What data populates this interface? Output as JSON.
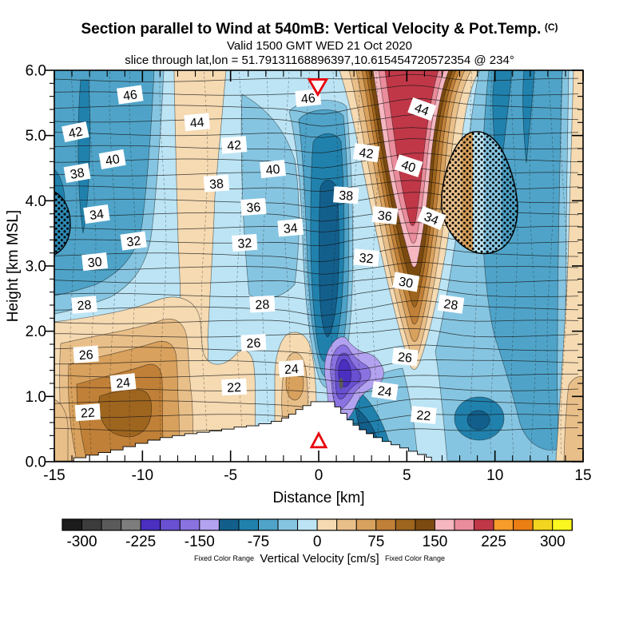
{
  "header": {
    "title": "Section parallel to Wind at 540mB: Vertical Velocity & Pot.Temp.",
    "title_suffix": "(C)",
    "subtitle1": "Valid 1500 GMT WED 21 Oct 2020",
    "subtitle2": "slice through lat,lon = 51.79131168896397,10.615454720572354 @ 234°"
  },
  "chart_data": {
    "type": "heatmap",
    "subtype": "filled-contour-vertical-cross-section",
    "xlabel": "Distance [km]",
    "ylabel": "Height [km MSL]",
    "xlim": [
      -15,
      15
    ],
    "ylim": [
      0,
      6
    ],
    "contour_units": "C",
    "contour_label_interval": 2,
    "x_ticks": [
      {
        "label": "-15",
        "v": -15
      },
      {
        "label": "-10",
        "v": -10
      },
      {
        "label": "-5",
        "v": -5
      },
      {
        "label": "0",
        "v": 0
      },
      {
        "label": "5",
        "v": 5
      },
      {
        "label": "10",
        "v": 10
      },
      {
        "label": "15",
        "v": 15
      }
    ],
    "y_ticks": [
      {
        "label": "0.0",
        "v": 0
      },
      {
        "label": "1.0",
        "v": 1
      },
      {
        "label": "2.0",
        "v": 2
      },
      {
        "label": "3.0",
        "v": 3
      },
      {
        "label": "4.0",
        "v": 4
      },
      {
        "label": "5.0",
        "v": 5
      },
      {
        "label": "6.0",
        "v": 6
      }
    ],
    "contour_labels": [
      {
        "v": "46",
        "x": -10.7,
        "y": 5.62,
        "r": -8
      },
      {
        "v": "46",
        "x": -0.6,
        "y": 5.57,
        "r": -6
      },
      {
        "v": "44",
        "x": -6.9,
        "y": 5.2,
        "r": -5
      },
      {
        "v": "44",
        "x": 5.85,
        "y": 5.4,
        "r": 20
      },
      {
        "v": "42",
        "x": -13.8,
        "y": 5.05,
        "r": -12
      },
      {
        "v": "42",
        "x": -4.8,
        "y": 4.85,
        "r": -5
      },
      {
        "v": "42",
        "x": 2.7,
        "y": 4.73,
        "r": 8
      },
      {
        "v": "40",
        "x": -11.7,
        "y": 4.63,
        "r": -10
      },
      {
        "v": "40",
        "x": -2.6,
        "y": 4.48,
        "r": -6
      },
      {
        "v": "40",
        "x": 5.1,
        "y": 4.53,
        "r": 18
      },
      {
        "v": "38",
        "x": -13.7,
        "y": 4.42,
        "r": -10
      },
      {
        "v": "38",
        "x": -5.8,
        "y": 4.26,
        "r": -4
      },
      {
        "v": "38",
        "x": 1.55,
        "y": 4.08,
        "r": 4
      },
      {
        "v": "36",
        "x": -3.7,
        "y": 3.9,
        "r": -4
      },
      {
        "v": "36",
        "x": 3.75,
        "y": 3.77,
        "r": 6
      },
      {
        "v": "34",
        "x": -12.6,
        "y": 3.79,
        "r": -8
      },
      {
        "v": "34",
        "x": -1.6,
        "y": 3.58,
        "r": -5
      },
      {
        "v": "34",
        "x": 6.4,
        "y": 3.73,
        "r": 22
      },
      {
        "v": "32",
        "x": -10.5,
        "y": 3.38,
        "r": -8
      },
      {
        "v": "32",
        "x": -4.2,
        "y": 3.35,
        "r": -4
      },
      {
        "v": "32",
        "x": 2.7,
        "y": 3.12,
        "r": 5
      },
      {
        "v": "30",
        "x": -12.7,
        "y": 3.06,
        "r": -6
      },
      {
        "v": "30",
        "x": 4.95,
        "y": 2.75,
        "r": 10
      },
      {
        "v": "28",
        "x": -13.3,
        "y": 2.4,
        "r": -5
      },
      {
        "v": "28",
        "x": -3.2,
        "y": 2.41,
        "r": -3
      },
      {
        "v": "28",
        "x": 7.5,
        "y": 2.41,
        "r": 8
      },
      {
        "v": "26",
        "x": -13.2,
        "y": 1.64,
        "r": -4
      },
      {
        "v": "26",
        "x": -3.7,
        "y": 1.82,
        "r": -3
      },
      {
        "v": "26",
        "x": 4.9,
        "y": 1.6,
        "r": 6
      },
      {
        "v": "24",
        "x": -11.1,
        "y": 1.21,
        "r": -6
      },
      {
        "v": "24",
        "x": -1.55,
        "y": 1.42,
        "r": -4
      },
      {
        "v": "24",
        "x": 3.75,
        "y": 1.08,
        "r": 8
      },
      {
        "v": "22",
        "x": -13.1,
        "y": 0.75,
        "r": -4
      },
      {
        "v": "22",
        "x": -4.8,
        "y": 1.14,
        "r": -3
      },
      {
        "v": "22",
        "x": 5.95,
        "y": 0.71,
        "r": 5
      }
    ],
    "markers": [
      {
        "type": "down-triangle",
        "x": -0.05,
        "y": 5.75,
        "color": "#e8000b"
      },
      {
        "type": "up-triangle",
        "x": 0.0,
        "y": 0.32,
        "color": "#e8000b"
      }
    ],
    "terrain_profile": [
      [
        -13.9,
        0.06
      ],
      [
        -13.2,
        0.1
      ],
      [
        -12.5,
        0.14
      ],
      [
        -11.8,
        0.18
      ],
      [
        -11.1,
        0.23
      ],
      [
        -10.4,
        0.28
      ],
      [
        -9.7,
        0.33
      ],
      [
        -9.0,
        0.37
      ],
      [
        -8.3,
        0.4
      ],
      [
        -7.6,
        0.43
      ],
      [
        -6.9,
        0.45
      ],
      [
        -6.2,
        0.47
      ],
      [
        -5.5,
        0.5
      ],
      [
        -4.8,
        0.53
      ],
      [
        -4.1,
        0.55
      ],
      [
        -3.4,
        0.58
      ],
      [
        -2.7,
        0.62
      ],
      [
        -2.1,
        0.67
      ],
      [
        -1.7,
        0.73
      ],
      [
        -1.3,
        0.8
      ],
      [
        -0.9,
        0.86
      ],
      [
        -0.45,
        0.92
      ],
      [
        0.55,
        0.92
      ],
      [
        0.9,
        0.84
      ],
      [
        1.25,
        0.74
      ],
      [
        1.6,
        0.64
      ],
      [
        1.95,
        0.56
      ],
      [
        2.3,
        0.49
      ],
      [
        2.7,
        0.43
      ],
      [
        3.1,
        0.37
      ],
      [
        3.6,
        0.31
      ],
      [
        4.1,
        0.26
      ],
      [
        4.6,
        0.21
      ],
      [
        5.1,
        0.16
      ],
      [
        5.6,
        0.11
      ],
      [
        6.1,
        0.07
      ],
      [
        6.4,
        0.04
      ]
    ],
    "colorbar": {
      "title": "Vertical Velocity [cm/s]",
      "note_left": "Fixed Color Range",
      "note_right": "Fixed Color Range",
      "segment_step": 25,
      "range_min": -325,
      "range_max": 325,
      "tick_labels": [
        "-300",
        "-225",
        "-150",
        "-75",
        "0",
        "75",
        "150",
        "225",
        "300"
      ],
      "segment_colors": [
        "#1c1c1c",
        "#3c3c3c",
        "#5a5a5a",
        "#7d7d7d",
        "#4a2fc0",
        "#6950d2",
        "#8a72e0",
        "#b3a2ef",
        "#135f8c",
        "#2181ad",
        "#4fa3c8",
        "#86c5e1",
        "#bce4f4",
        "#f5dab2",
        "#e9bf89",
        "#d8a15d",
        "#c08038",
        "#9e651f",
        "#7b4a10",
        "#f6b7c1",
        "#ea8c9b",
        "#c03848",
        "#f79b2b",
        "#ec7f13",
        "#f1d51e",
        "#faf61f"
      ]
    }
  }
}
